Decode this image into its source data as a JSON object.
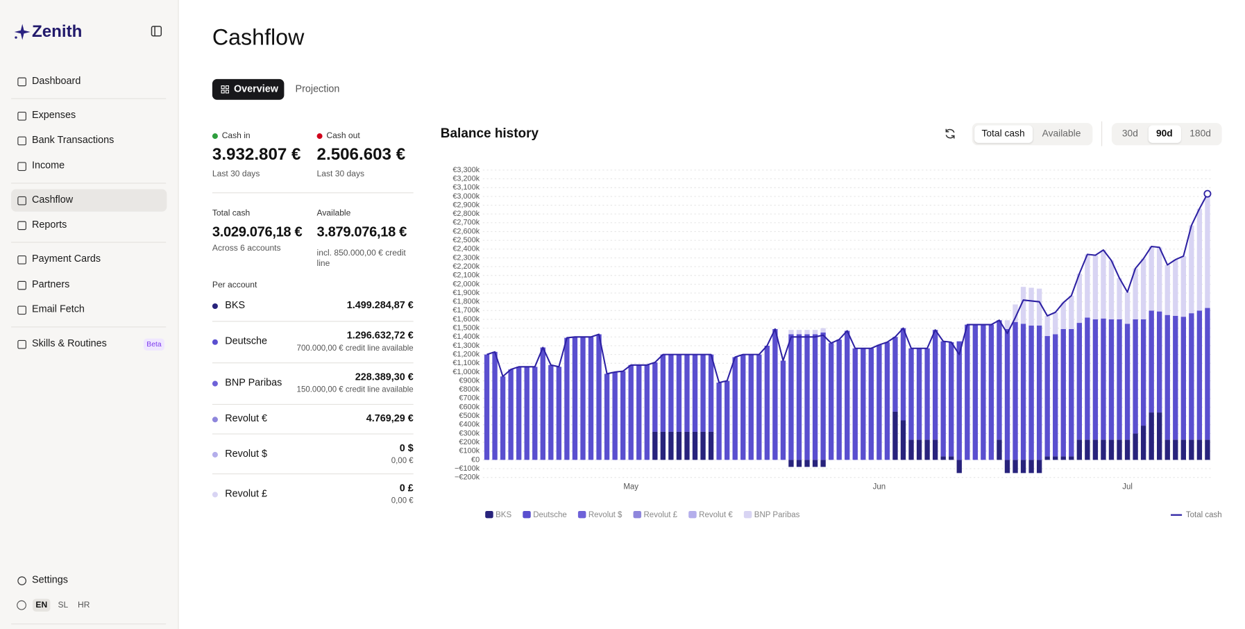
{
  "sidebar": {
    "brand": "Zenith",
    "nav": [
      "Dashboard",
      "Expenses",
      "Bank Transactions",
      "Income",
      "Cashflow",
      "Reports",
      "Payment Cards",
      "Partners",
      "Email Fetch",
      "Skills & Routines"
    ],
    "beta": "Beta",
    "settings": "Settings",
    "languages": [
      "EN",
      "SL",
      "HR"
    ]
  },
  "header": {
    "title": "Cashflow",
    "tabs": [
      "Overview",
      "Projection"
    ]
  },
  "summary": {
    "cash_in": {
      "label": "Cash in",
      "value": "3.932.807 €",
      "note": "Last 30 days"
    },
    "cash_out": {
      "label": "Cash out",
      "value": "2.506.603 €",
      "note": "Last 30 days"
    },
    "total_cash": {
      "label": "Total cash",
      "value": "3.029.076,18 €",
      "note": "Across 6 accounts"
    },
    "available": {
      "label": "Available",
      "value": "3.879.076,18 €",
      "note": "incl. 850.000,00 € credit line"
    }
  },
  "accounts": {
    "title": "Per account",
    "items": [
      {
        "name": "BKS",
        "balance": "1.499.284,87 €"
      },
      {
        "name": "Deutsche",
        "balance": "1.296.632,72 €",
        "note": "700.000,00 € credit line available"
      },
      {
        "name": "BNP Paribas",
        "balance": "228.389,30 €",
        "note": "150.000,00 € credit line available"
      },
      {
        "name": "Revolut €",
        "balance": "4.769,29 €"
      },
      {
        "name": "Revolut $",
        "balance": "0 $",
        "note": "0,00 €"
      },
      {
        "name": "Revolut £",
        "balance": "0 £",
        "note": "0,00 €"
      }
    ]
  },
  "chart_controls": {
    "views": [
      "Total cash",
      "Available"
    ],
    "ranges": [
      "30d",
      "90d",
      "180d"
    ]
  },
  "chart_data": {
    "type": "bar",
    "stacked": true,
    "title": "Balance history",
    "categories": [
      null,
      null,
      null,
      null,
      null,
      null,
      null,
      null,
      null,
      null,
      null,
      null,
      null,
      null,
      null,
      null,
      null,
      null,
      "May",
      null,
      null,
      null,
      null,
      null,
      null,
      null,
      null,
      null,
      null,
      null,
      null,
      null,
      null,
      null,
      null,
      null,
      null,
      null,
      null,
      null,
      null,
      null,
      null,
      null,
      null,
      null,
      null,
      null,
      null,
      "Jun",
      null,
      null,
      null,
      null,
      null,
      null,
      null,
      null,
      null,
      null,
      null,
      null,
      null,
      null,
      null,
      null,
      null,
      null,
      null,
      null,
      null,
      null,
      null,
      null,
      null,
      null,
      null,
      null,
      null,
      null,
      "Jul",
      null,
      null,
      null,
      null,
      null,
      null,
      null,
      null,
      null,
      null
    ],
    "ylim": [
      -200000,
      3300000
    ],
    "yticks": [
      {
        "value": -200000,
        "label": "−€200k"
      },
      {
        "value": -100000,
        "label": "−€100k"
      },
      {
        "value": 0,
        "label": "€0"
      },
      {
        "value": 100000,
        "label": "€100k"
      },
      {
        "value": 200000,
        "label": "€200k"
      },
      {
        "value": 300000,
        "label": "€300k"
      },
      {
        "value": 400000,
        "label": "€400k"
      },
      {
        "value": 500000,
        "label": "€500k"
      },
      {
        "value": 600000,
        "label": "€600k"
      },
      {
        "value": 700000,
        "label": "€700k"
      },
      {
        "value": 800000,
        "label": "€800k"
      },
      {
        "value": 900000,
        "label": "€900k"
      },
      {
        "value": 1000000,
        "label": "€1,000k"
      },
      {
        "value": 1100000,
        "label": "€1,100k"
      },
      {
        "value": 1200000,
        "label": "€1,200k"
      },
      {
        "value": 1300000,
        "label": "€1,300k"
      },
      {
        "value": 1400000,
        "label": "€1,400k"
      },
      {
        "value": 1500000,
        "label": "€1,500k"
      },
      {
        "value": 1600000,
        "label": "€1,600k"
      },
      {
        "value": 1700000,
        "label": "€1,700k"
      },
      {
        "value": 1800000,
        "label": "€1,800k"
      },
      {
        "value": 1900000,
        "label": "€1,900k"
      },
      {
        "value": 2000000,
        "label": "€2,000k"
      },
      {
        "value": 2100000,
        "label": "€2,100k"
      },
      {
        "value": 2200000,
        "label": "€2,200k"
      },
      {
        "value": 2300000,
        "label": "€2,300k"
      },
      {
        "value": 2400000,
        "label": "€2,400k"
      },
      {
        "value": 2500000,
        "label": "€2,500k"
      },
      {
        "value": 2600000,
        "label": "€2,600k"
      },
      {
        "value": 2700000,
        "label": "€2,700k"
      },
      {
        "value": 2800000,
        "label": "€2,800k"
      },
      {
        "value": 2900000,
        "label": "€2,900k"
      },
      {
        "value": 3000000,
        "label": "€3,000k"
      },
      {
        "value": 3100000,
        "label": "€3,100k"
      },
      {
        "value": 3200000,
        "label": "€3,200k"
      },
      {
        "value": 3300000,
        "label": "€3,300k"
      }
    ],
    "grid": true,
    "series": [
      {
        "name": "BKS",
        "color": "#28237c",
        "values": [
          0,
          0,
          0,
          0,
          0,
          0,
          0,
          0,
          0,
          0,
          0,
          0,
          0,
          0,
          0,
          0,
          0,
          0,
          0,
          0,
          0,
          320000,
          320000,
          320000,
          320000,
          320000,
          320000,
          320000,
          320000,
          0,
          0,
          0,
          0,
          0,
          0,
          0,
          0,
          0,
          -80000,
          -80000,
          -80000,
          -80000,
          -80000,
          0,
          0,
          0,
          0,
          0,
          0,
          0,
          0,
          550000,
          450000,
          230000,
          230000,
          230000,
          230000,
          40000,
          40000,
          -150000,
          0,
          0,
          0,
          0,
          230000,
          -150000,
          -150000,
          -150000,
          -150000,
          -150000,
          40000,
          40000,
          40000,
          40000,
          230000,
          230000,
          230000,
          230000,
          230000,
          230000,
          230000,
          300000,
          390000,
          540000,
          540000,
          230000,
          230000,
          230000,
          230000,
          230000,
          230000
        ]
      },
      {
        "name": "Deutsche",
        "color": "#5a4fcf",
        "values": [
          1200000,
          1230000,
          950000,
          1030000,
          1060000,
          1060000,
          1060000,
          1280000,
          1080000,
          1060000,
          1390000,
          1400000,
          1400000,
          1400000,
          1430000,
          980000,
          1000000,
          1010000,
          1080000,
          1080000,
          1080000,
          790000,
          880000,
          880000,
          880000,
          880000,
          880000,
          880000,
          880000,
          880000,
          900000,
          1170000,
          1200000,
          1200000,
          1200000,
          1300000,
          1490000,
          1130000,
          1430000,
          1430000,
          1430000,
          1430000,
          1450000,
          1330000,
          1370000,
          1470000,
          1270000,
          1270000,
          1270000,
          1310000,
          1340000,
          850000,
          1050000,
          1040000,
          1040000,
          1040000,
          1250000,
          1310000,
          1300000,
          1350000,
          1540000,
          1540000,
          1540000,
          1540000,
          1360000,
          1490000,
          1570000,
          1550000,
          1530000,
          1530000,
          1370000,
          1390000,
          1450000,
          1450000,
          1330000,
          1390000,
          1370000,
          1380000,
          1370000,
          1370000,
          1320000,
          1300000,
          1210000,
          1160000,
          1150000,
          1420000,
          1410000,
          1400000,
          1440000,
          1470000,
          1500000
        ]
      },
      {
        "name": "Revolut $",
        "color": "#6e62d8",
        "values": [
          0,
          0,
          0,
          0,
          0,
          0,
          0,
          0,
          0,
          0,
          0,
          0,
          0,
          0,
          0,
          0,
          0,
          0,
          0,
          0,
          0,
          0,
          0,
          0,
          0,
          0,
          0,
          0,
          0,
          0,
          0,
          0,
          0,
          0,
          0,
          0,
          0,
          0,
          0,
          0,
          0,
          0,
          0,
          0,
          0,
          0,
          0,
          0,
          0,
          0,
          0,
          0,
          0,
          0,
          0,
          0,
          0,
          0,
          0,
          0,
          0,
          0,
          0,
          0,
          0,
          0,
          0,
          0,
          0,
          0,
          0,
          0,
          0,
          0,
          0,
          0,
          0,
          0,
          0,
          0,
          0,
          0,
          0,
          0,
          0,
          0,
          0,
          0,
          0,
          0,
          0
        ]
      },
      {
        "name": "Revolut £",
        "color": "#8e86dc",
        "values": [
          0,
          0,
          0,
          0,
          0,
          0,
          0,
          0,
          0,
          0,
          0,
          0,
          0,
          0,
          0,
          0,
          0,
          0,
          0,
          0,
          0,
          0,
          0,
          0,
          0,
          0,
          0,
          0,
          0,
          0,
          0,
          0,
          0,
          0,
          0,
          0,
          0,
          0,
          0,
          0,
          0,
          0,
          0,
          0,
          0,
          0,
          0,
          0,
          0,
          0,
          0,
          0,
          0,
          0,
          0,
          0,
          0,
          0,
          0,
          0,
          0,
          0,
          0,
          0,
          0,
          0,
          0,
          0,
          0,
          0,
          0,
          0,
          0,
          0,
          0,
          0,
          0,
          0,
          0,
          0,
          0,
          0,
          0,
          0,
          0,
          0,
          0,
          0,
          0,
          0,
          0
        ]
      },
      {
        "name": "Revolut €",
        "color": "#b4aeeb",
        "values": [
          0,
          0,
          0,
          0,
          0,
          0,
          0,
          0,
          0,
          0,
          0,
          0,
          0,
          0,
          0,
          0,
          0,
          0,
          0,
          0,
          0,
          0,
          0,
          0,
          0,
          0,
          0,
          0,
          0,
          0,
          0,
          0,
          0,
          0,
          0,
          0,
          0,
          0,
          0,
          0,
          0,
          0,
          0,
          0,
          0,
          0,
          0,
          0,
          0,
          0,
          0,
          0,
          0,
          0,
          0,
          0,
          0,
          0,
          0,
          0,
          0,
          0,
          0,
          0,
          0,
          0,
          0,
          0,
          0,
          0,
          0,
          0,
          0,
          0,
          0,
          0,
          0,
          0,
          0,
          0,
          0,
          0,
          0,
          0,
          0,
          0,
          0,
          0,
          0,
          0,
          0
        ]
      },
      {
        "name": "BNP Paribas",
        "color": "#d8d4f3",
        "values": [
          0,
          0,
          0,
          0,
          0,
          0,
          0,
          0,
          0,
          0,
          0,
          0,
          0,
          0,
          0,
          0,
          0,
          0,
          0,
          0,
          0,
          0,
          0,
          0,
          0,
          0,
          0,
          0,
          0,
          0,
          0,
          0,
          0,
          0,
          0,
          0,
          0,
          0,
          50000,
          50000,
          50000,
          50000,
          50000,
          0,
          0,
          0,
          0,
          0,
          0,
          0,
          0,
          0,
          0,
          0,
          0,
          0,
          0,
          0,
          0,
          0,
          0,
          0,
          0,
          0,
          0,
          100000,
          200000,
          420000,
          430000,
          420000,
          230000,
          250000,
          300000,
          380000,
          560000,
          720000,
          730000,
          780000,
          670000,
          470000,
          360000,
          580000,
          690000,
          730000,
          730000,
          570000,
          640000,
          690000,
          1000000,
          1160000,
          1300000
        ]
      },
      {
        "name": "Total cash",
        "type": "line",
        "color": "#2d21a3",
        "values": [
          1200000,
          1230000,
          950000,
          1030000,
          1060000,
          1060000,
          1060000,
          1280000,
          1080000,
          1060000,
          1390000,
          1400000,
          1400000,
          1400000,
          1430000,
          980000,
          1000000,
          1010000,
          1080000,
          1080000,
          1080000,
          1110000,
          1200000,
          1200000,
          1200000,
          1200000,
          1200000,
          1200000,
          1200000,
          880000,
          900000,
          1170000,
          1200000,
          1200000,
          1200000,
          1300000,
          1490000,
          1130000,
          1400000,
          1400000,
          1400000,
          1400000,
          1420000,
          1330000,
          1370000,
          1470000,
          1270000,
          1270000,
          1270000,
          1310000,
          1340000,
          1400000,
          1500000,
          1270000,
          1270000,
          1270000,
          1480000,
          1350000,
          1340000,
          1200000,
          1540000,
          1540000,
          1540000,
          1540000,
          1590000,
          1440000,
          1620000,
          1820000,
          1810000,
          1800000,
          1640000,
          1680000,
          1790000,
          1870000,
          2120000,
          2340000,
          2330000,
          2390000,
          2270000,
          2070000,
          1910000,
          2180000,
          2290000,
          2430000,
          2420000,
          2220000,
          2280000,
          2320000,
          2670000,
          2860000,
          3030000
        ]
      }
    ]
  }
}
